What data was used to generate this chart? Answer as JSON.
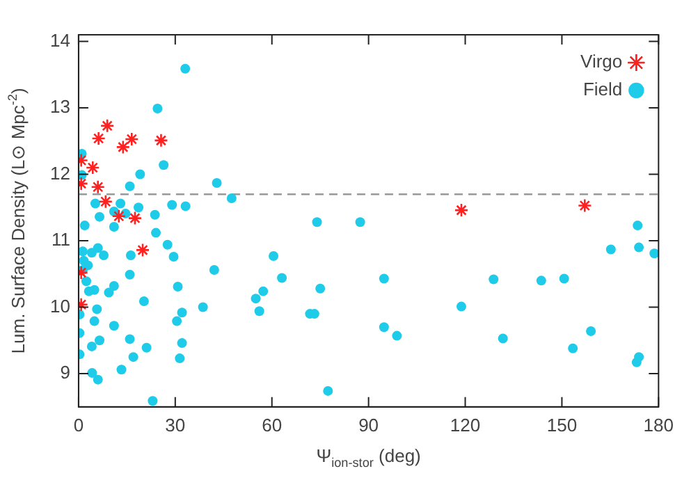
{
  "chart_data": {
    "type": "scatter",
    "xlabel": "Ψ$_{ion-stor}$ (deg)",
    "ylabel": "Lum. Surface Density (L⊙ Mpc$^{-2}$)",
    "xlim": [
      0,
      180
    ],
    "xticks": [
      0,
      30,
      60,
      90,
      120,
      150,
      180
    ],
    "ylim": [
      8.5,
      14.1
    ],
    "yticks": [
      9,
      10,
      11,
      12,
      13,
      14
    ],
    "grid": false,
    "legend": "top right",
    "ref_lines": [
      {
        "axis": "y",
        "value": 11.7,
        "color": "#999999",
        "line_style": "dashed"
      }
    ],
    "series": [
      {
        "name": "Virgo",
        "color": "#ff2020",
        "marker": "cross",
        "x": [
          8.9,
          6.2,
          16.5,
          13.8,
          25.6,
          4.4,
          0.8,
          0.8,
          6.0,
          8.4,
          12.5,
          17.5,
          19.9,
          0.8,
          0.8,
          118.8,
          157.1
        ],
        "values": [
          12.73,
          12.54,
          12.53,
          12.41,
          12.51,
          12.1,
          12.21,
          11.86,
          11.81,
          11.59,
          11.37,
          11.34,
          10.86,
          10.52,
          10.04,
          11.46,
          11.53
        ]
      },
      {
        "name": "Field",
        "color": "#1ecbe8",
        "marker": "circle",
        "x": [
          33.1,
          24.5,
          1.0,
          26.4,
          1.0,
          19.1,
          15.9,
          42.9,
          47.5,
          5.2,
          13,
          6.5,
          11,
          14.6,
          18.6,
          23.7,
          29,
          33.2,
          1.9,
          11,
          24,
          27.6,
          29.5,
          42.1,
          1.3,
          4.1,
          6,
          7.8,
          16.2,
          1.6,
          2.9,
          1.3,
          2.4,
          15.9,
          30.8,
          3.2,
          4.9,
          11,
          9.4,
          20.3,
          5.7,
          38.6,
          32.1,
          0.3,
          4.9,
          30.5,
          11,
          0.3,
          15.9,
          32.1,
          6.5,
          4.1,
          21.1,
          0.3,
          17,
          31.4,
          13.3,
          4.2,
          6,
          23,
          74.0,
          87.4,
          60.5,
          63.1,
          55.0,
          57.3,
          56.1,
          75.0,
          71.8,
          73.2,
          77.4,
          94.8,
          94.8,
          98.8,
          118.8,
          128.8,
          131.7,
          143.6,
          150.7,
          153.4,
          159.0,
          165.2,
          173.5,
          173.9,
          178.7,
          173.9,
          173.2
        ],
        "values": [
          13.59,
          12.99,
          12.31,
          12.14,
          11.99,
          12.0,
          11.82,
          11.87,
          11.64,
          11.56,
          11.56,
          11.36,
          11.44,
          11.41,
          11.5,
          11.39,
          11.54,
          11.52,
          11.23,
          11.21,
          11.12,
          10.94,
          10.76,
          10.56,
          10.84,
          10.82,
          10.89,
          10.78,
          10.78,
          10.7,
          10.63,
          10.56,
          10.39,
          10.49,
          10.31,
          10.24,
          10.26,
          10.32,
          10.22,
          10.09,
          9.97,
          10.0,
          9.92,
          9.89,
          9.79,
          9.79,
          9.72,
          9.61,
          9.52,
          9.46,
          9.5,
          9.41,
          9.39,
          9.29,
          9.25,
          9.23,
          9.06,
          9.01,
          8.91,
          8.59,
          11.28,
          11.28,
          10.77,
          10.44,
          10.13,
          10.24,
          9.94,
          10.28,
          9.9,
          9.9,
          8.74,
          10.43,
          9.7,
          9.57,
          10.01,
          10.42,
          9.53,
          10.4,
          10.43,
          9.38,
          9.64,
          10.87,
          11.23,
          10.9,
          10.81,
          9.25,
          9.17
        ]
      }
    ]
  }
}
